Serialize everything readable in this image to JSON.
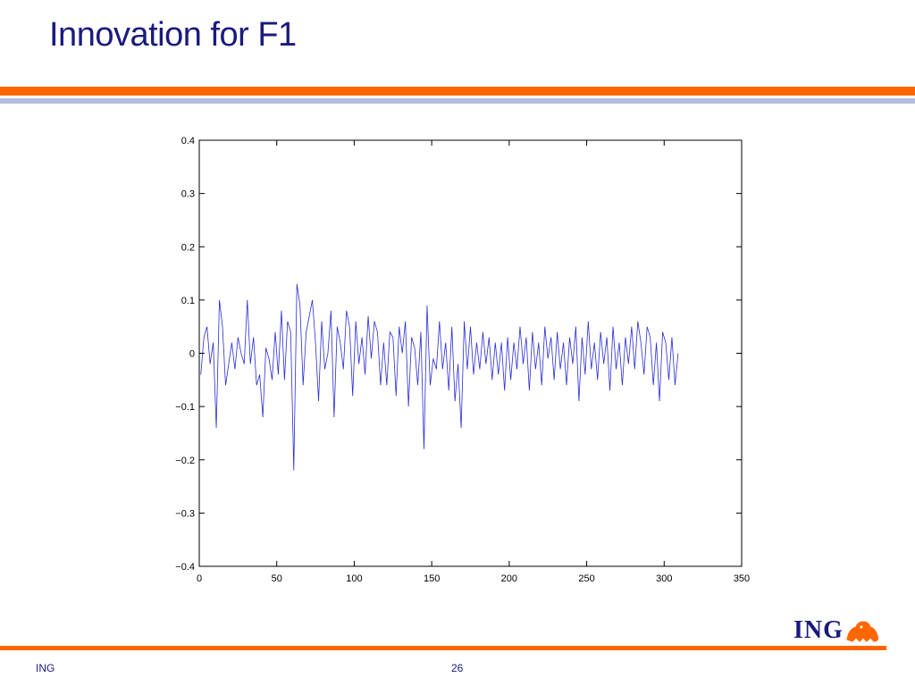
{
  "slide": {
    "title": "Innovation for F1",
    "footer_left": "ING",
    "page_number": "26",
    "logo_text": "ING"
  },
  "colors": {
    "title": "#1a1a7e",
    "accent_orange": "#ff6600",
    "accent_blue_light": "#b6bde0",
    "series_line": "#2b2bd6"
  },
  "chart_data": {
    "type": "line",
    "title": "",
    "xlabel": "",
    "ylabel": "",
    "xlim": [
      0,
      350
    ],
    "ylim": [
      -0.4,
      0.4
    ],
    "xticks": [
      0,
      50,
      100,
      150,
      200,
      250,
      300,
      350
    ],
    "xtick_labels": [
      "0",
      "50",
      "100",
      "150",
      "200",
      "250",
      "300",
      "350"
    ],
    "yticks": [
      0.4,
      0.3,
      0.2,
      0.1,
      0,
      -0.1,
      -0.2,
      -0.3,
      -0.4
    ],
    "ytick_labels": [
      "0.4",
      "0.3",
      "0.2",
      "0.1",
      "0",
      "−0.1",
      "−0.2",
      "−0.3",
      "−0.4"
    ],
    "grid": false,
    "series": [
      {
        "x_start": 1,
        "x_step": 2,
        "values": [
          -0.04,
          0.03,
          0.05,
          -0.02,
          0.02,
          -0.14,
          0.1,
          0.05,
          -0.06,
          -0.02,
          0.02,
          -0.03,
          0.03,
          0.0,
          -0.02,
          0.1,
          -0.02,
          0.03,
          -0.06,
          -0.04,
          -0.12,
          0.01,
          -0.01,
          -0.05,
          0.04,
          -0.04,
          0.08,
          -0.05,
          0.06,
          0.04,
          -0.22,
          0.13,
          0.09,
          -0.06,
          0.04,
          0.07,
          0.1,
          0.02,
          -0.09,
          0.06,
          -0.03,
          0.0,
          0.08,
          -0.12,
          0.05,
          0.02,
          -0.03,
          0.08,
          0.05,
          -0.08,
          0.06,
          -0.02,
          0.03,
          -0.04,
          0.07,
          -0.01,
          0.06,
          0.04,
          -0.06,
          0.02,
          -0.06,
          0.04,
          0.03,
          -0.08,
          0.05,
          0.0,
          0.06,
          -0.1,
          0.03,
          0.01,
          -0.06,
          0.04,
          -0.18,
          0.09,
          -0.06,
          -0.01,
          -0.03,
          0.06,
          -0.03,
          0.02,
          -0.07,
          0.05,
          -0.09,
          -0.02,
          -0.14,
          0.06,
          -0.03,
          0.05,
          -0.04,
          0.02,
          -0.03,
          0.04,
          -0.02,
          0.03,
          -0.05,
          0.02,
          -0.04,
          0.02,
          -0.07,
          0.03,
          -0.05,
          0.02,
          -0.03,
          0.05,
          -0.02,
          0.03,
          -0.07,
          0.04,
          -0.03,
          0.02,
          -0.06,
          0.05,
          -0.01,
          0.03,
          -0.05,
          0.04,
          -0.03,
          0.02,
          -0.06,
          0.03,
          -0.02,
          0.05,
          -0.09,
          0.03,
          -0.04,
          0.06,
          -0.03,
          0.02,
          -0.05,
          0.04,
          -0.02,
          0.03,
          -0.07,
          0.05,
          -0.03,
          0.02,
          -0.06,
          0.03,
          -0.02,
          0.05,
          -0.03,
          0.06,
          0.02,
          -0.04,
          0.05,
          0.03,
          -0.06,
          0.02,
          -0.09,
          0.04,
          0.02,
          -0.05,
          0.03,
          -0.06,
          0.0
        ]
      }
    ]
  }
}
